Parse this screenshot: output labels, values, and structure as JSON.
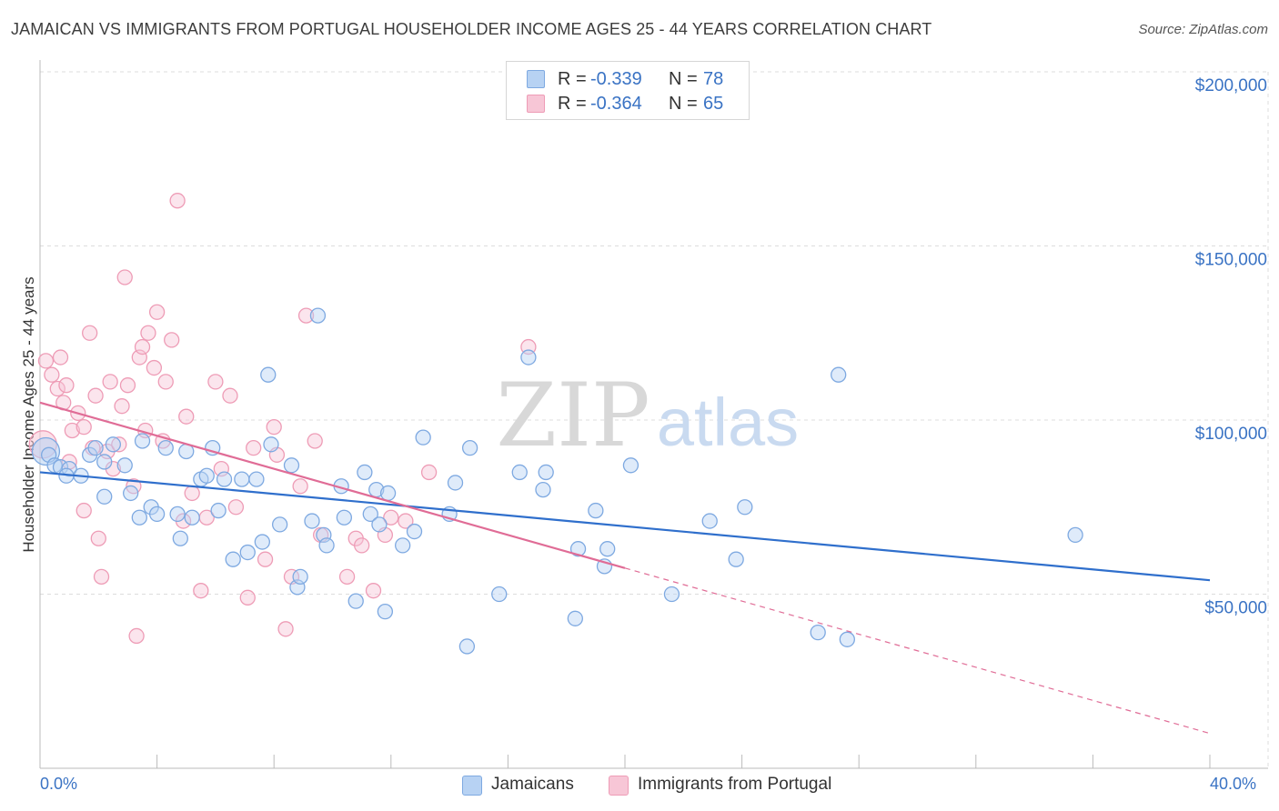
{
  "title": "JAMAICAN VS IMMIGRANTS FROM PORTUGAL HOUSEHOLDER INCOME AGES 25 - 44 YEARS CORRELATION CHART",
  "source": "Source: ZipAtlas.com",
  "watermark": {
    "zip": "ZIP",
    "atlas": "atlas"
  },
  "legend_top": {
    "rows": [
      {
        "r_label": "R =",
        "r_value": "-0.339",
        "n_label": "N =",
        "n_value": "78"
      },
      {
        "r_label": "R =",
        "r_value": "-0.364",
        "n_label": "N =",
        "n_value": "65"
      }
    ]
  },
  "legend_bottom": {
    "items": [
      "Jamaicans",
      "Immigrants from Portugal"
    ]
  },
  "colors": {
    "blue_fill": "#b7d2f3",
    "blue_stroke": "#7ea9e1",
    "blue_line": "#2f6fcc",
    "pink_fill": "#f7c6d6",
    "pink_stroke": "#ee9cb6",
    "pink_line": "#e06c96",
    "axis_text": "#3a73c4",
    "grid": "#dddddd"
  },
  "chart_data": {
    "type": "scatter",
    "title": "JAMAICAN VS IMMIGRANTS FROM PORTUGAL HOUSEHOLDER INCOME AGES 25 - 44 YEARS CORRELATION CHART",
    "xlabel": "",
    "ylabel": "Householder Income Ages 25 - 44 years",
    "xlim": [
      0,
      40
    ],
    "ylim": [
      0,
      200000
    ],
    "x_tick_labels": [
      "0.0%",
      "40.0%"
    ],
    "y_ticks": [
      {
        "value": 50000,
        "label": "$50,000"
      },
      {
        "value": 100000,
        "label": "$100,000"
      },
      {
        "value": 150000,
        "label": "$150,000"
      },
      {
        "value": 200000,
        "label": "$200,000"
      }
    ],
    "grid": true,
    "legend_position": "bottom",
    "series": [
      {
        "name": "Jamaicans",
        "R": -0.339,
        "N": 78,
        "trend": {
          "x": [
            0,
            40
          ],
          "y": [
            85000,
            54000
          ],
          "dashed_after": null
        },
        "points": [
          [
            0.2,
            91000
          ],
          [
            0.3,
            90000
          ],
          [
            0.5,
            87000
          ],
          [
            0.7,
            86500
          ],
          [
            1.0,
            86000
          ],
          [
            0.9,
            84000
          ],
          [
            1.4,
            84000
          ],
          [
            1.7,
            90000
          ],
          [
            1.9,
            92000
          ],
          [
            2.2,
            88000
          ],
          [
            2.5,
            93000
          ],
          [
            2.9,
            87000
          ],
          [
            2.2,
            78000
          ],
          [
            3.1,
            79000
          ],
          [
            3.4,
            72000
          ],
          [
            3.8,
            75000
          ],
          [
            4.0,
            73000
          ],
          [
            3.5,
            94000
          ],
          [
            4.3,
            92000
          ],
          [
            4.7,
            73000
          ],
          [
            4.8,
            66000
          ],
          [
            5.0,
            91000
          ],
          [
            5.2,
            72000
          ],
          [
            5.5,
            83000
          ],
          [
            5.7,
            84000
          ],
          [
            5.9,
            92000
          ],
          [
            6.1,
            74000
          ],
          [
            6.3,
            83000
          ],
          [
            6.6,
            60000
          ],
          [
            6.9,
            83000
          ],
          [
            7.1,
            62000
          ],
          [
            7.4,
            83000
          ],
          [
            7.6,
            65000
          ],
          [
            7.8,
            113000
          ],
          [
            7.9,
            93000
          ],
          [
            8.2,
            70000
          ],
          [
            8.6,
            87000
          ],
          [
            8.8,
            52000
          ],
          [
            8.9,
            55000
          ],
          [
            9.3,
            71000
          ],
          [
            9.5,
            130000
          ],
          [
            9.7,
            67000
          ],
          [
            9.8,
            64000
          ],
          [
            10.3,
            81000
          ],
          [
            10.4,
            72000
          ],
          [
            10.8,
            48000
          ],
          [
            11.1,
            85000
          ],
          [
            11.3,
            73000
          ],
          [
            11.5,
            80000
          ],
          [
            11.6,
            70000
          ],
          [
            11.8,
            45000
          ],
          [
            11.9,
            79000
          ],
          [
            12.4,
            64000
          ],
          [
            12.8,
            68000
          ],
          [
            13.1,
            95000
          ],
          [
            14.0,
            73000
          ],
          [
            14.2,
            82000
          ],
          [
            14.6,
            35000
          ],
          [
            14.7,
            92000
          ],
          [
            15.7,
            50000
          ],
          [
            16.4,
            85000
          ],
          [
            16.7,
            118000
          ],
          [
            17.2,
            80000
          ],
          [
            17.3,
            85000
          ],
          [
            18.3,
            43000
          ],
          [
            18.4,
            63000
          ],
          [
            19.0,
            74000
          ],
          [
            19.3,
            58000
          ],
          [
            19.4,
            63000
          ],
          [
            20.2,
            87000
          ],
          [
            21.6,
            50000
          ],
          [
            22.9,
            71000
          ],
          [
            23.8,
            60000
          ],
          [
            24.1,
            75000
          ],
          [
            26.6,
            39000
          ],
          [
            27.3,
            113000
          ],
          [
            27.6,
            37000
          ],
          [
            35.4,
            67000
          ]
        ]
      },
      {
        "name": "Immigrants from Portugal",
        "R": -0.364,
        "N": 65,
        "trend": {
          "x": [
            0,
            40
          ],
          "y": [
            105000,
            10000
          ],
          "dashed_after": 20.0
        },
        "points": [
          [
            0.1,
            93000
          ],
          [
            0.2,
            117000
          ],
          [
            0.4,
            113000
          ],
          [
            0.6,
            109000
          ],
          [
            0.7,
            118000
          ],
          [
            0.8,
            105000
          ],
          [
            0.9,
            110000
          ],
          [
            1.0,
            88000
          ],
          [
            1.1,
            97000
          ],
          [
            1.3,
            102000
          ],
          [
            1.5,
            74000
          ],
          [
            1.5,
            98000
          ],
          [
            1.7,
            125000
          ],
          [
            1.8,
            92000
          ],
          [
            1.9,
            107000
          ],
          [
            2.0,
            66000
          ],
          [
            2.1,
            55000
          ],
          [
            2.3,
            91000
          ],
          [
            2.4,
            111000
          ],
          [
            2.5,
            86000
          ],
          [
            2.7,
            93000
          ],
          [
            2.8,
            104000
          ],
          [
            2.9,
            141000
          ],
          [
            3.0,
            110000
          ],
          [
            3.2,
            81000
          ],
          [
            3.3,
            38000
          ],
          [
            3.4,
            118000
          ],
          [
            3.5,
            121000
          ],
          [
            3.6,
            97000
          ],
          [
            3.7,
            125000
          ],
          [
            3.9,
            115000
          ],
          [
            4.0,
            131000
          ],
          [
            4.2,
            94000
          ],
          [
            4.3,
            111000
          ],
          [
            4.5,
            123000
          ],
          [
            4.7,
            163000
          ],
          [
            4.9,
            71000
          ],
          [
            5.0,
            101000
          ],
          [
            5.2,
            79000
          ],
          [
            5.5,
            51000
          ],
          [
            5.7,
            72000
          ],
          [
            6.0,
            111000
          ],
          [
            6.2,
            86000
          ],
          [
            6.5,
            107000
          ],
          [
            6.7,
            75000
          ],
          [
            7.1,
            49000
          ],
          [
            7.3,
            92000
          ],
          [
            7.7,
            60000
          ],
          [
            8.0,
            98000
          ],
          [
            8.1,
            90000
          ],
          [
            8.4,
            40000
          ],
          [
            8.6,
            55000
          ],
          [
            9.1,
            130000
          ],
          [
            9.4,
            94000
          ],
          [
            9.6,
            67000
          ],
          [
            10.5,
            55000
          ],
          [
            10.8,
            66000
          ],
          [
            11.4,
            51000
          ],
          [
            11.8,
            67000
          ],
          [
            12.5,
            71000
          ],
          [
            13.3,
            85000
          ],
          [
            16.7,
            121000
          ],
          [
            11.0,
            64000
          ],
          [
            12.0,
            72000
          ],
          [
            8.9,
            81000
          ]
        ]
      }
    ]
  }
}
